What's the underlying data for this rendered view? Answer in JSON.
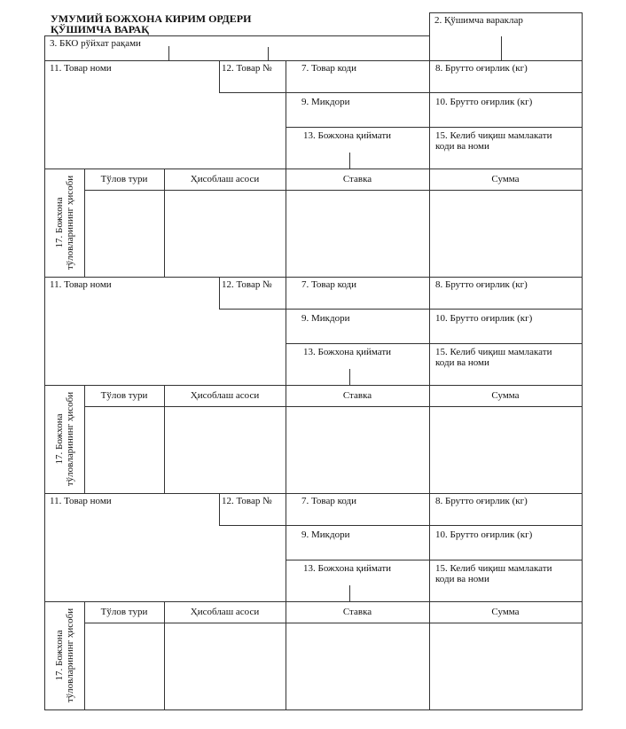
{
  "header": {
    "title_line1": "УМУМИЙ БОЖХОНА КИРИМ ОРДЕРИ",
    "title_line2": "ҚЎШИМЧА ВАРАҚ",
    "box2_label": "2. Қўшимча вараклар",
    "box3_label": "3. БКО рўйхат рақами"
  },
  "blocks": [
    {
      "goods_name": "11. Товар номи",
      "goods_no": "12. Товар №",
      "goods_code": "7. Товар коди",
      "gross_weight": "8. Брутто оғирлик (кг)",
      "quantity": "9. Микдори",
      "gross_weight_2": "10. Брутто оғирлик (кг)",
      "customs_value": "13. Божхона қиймати",
      "origin_line1": "15. Келиб чиқиш мамлакати",
      "origin_line2": "коди ва номи",
      "payments_line1": "17. Божхона",
      "payments_line2": "тўловларининг ҳисоби",
      "col_type": "Тўлов тури",
      "col_basis": "Ҳисоблаш асоси",
      "col_rate": "Ставка",
      "col_sum": "Сумма"
    },
    {
      "goods_name": "11. Товар номи",
      "goods_no": "12. Товар №",
      "goods_code": "7. Товар коди",
      "gross_weight": "8. Брутто оғирлик (кг)",
      "quantity": "9. Микдори",
      "gross_weight_2": "10. Брутто оғирлик (кг)",
      "customs_value": "13. Божхона қиймати",
      "origin_line1": "15. Келиб чиқиш мамлакати",
      "origin_line2": "коди ва номи",
      "payments_line1": "17. Божхона",
      "payments_line2": "тўловларининг ҳисоби",
      "col_type": "Тўлов тури",
      "col_basis": "Ҳисоблаш асоси",
      "col_rate": "Ставка",
      "col_sum": "Сумма"
    },
    {
      "goods_name": "11. Товар номи",
      "goods_no": "12. Товар №",
      "goods_code": "7. Товар коди",
      "gross_weight": "8. Брутто оғирлик (кг)",
      "quantity": "9. Микдори",
      "gross_weight_2": "10. Брутто оғирлик (кг)",
      "customs_value": "13. Божхона қиймати",
      "origin_line1": "15. Келиб чиқиш мамлакати",
      "origin_line2": "коди ва номи",
      "payments_line1": "17. Божхона",
      "payments_line2": "тўловларининг ҳисоби",
      "col_type": "Тўлов тури",
      "col_basis": "Ҳисоблаш асоси",
      "col_rate": "Ставка",
      "col_sum": "Сумма"
    }
  ]
}
